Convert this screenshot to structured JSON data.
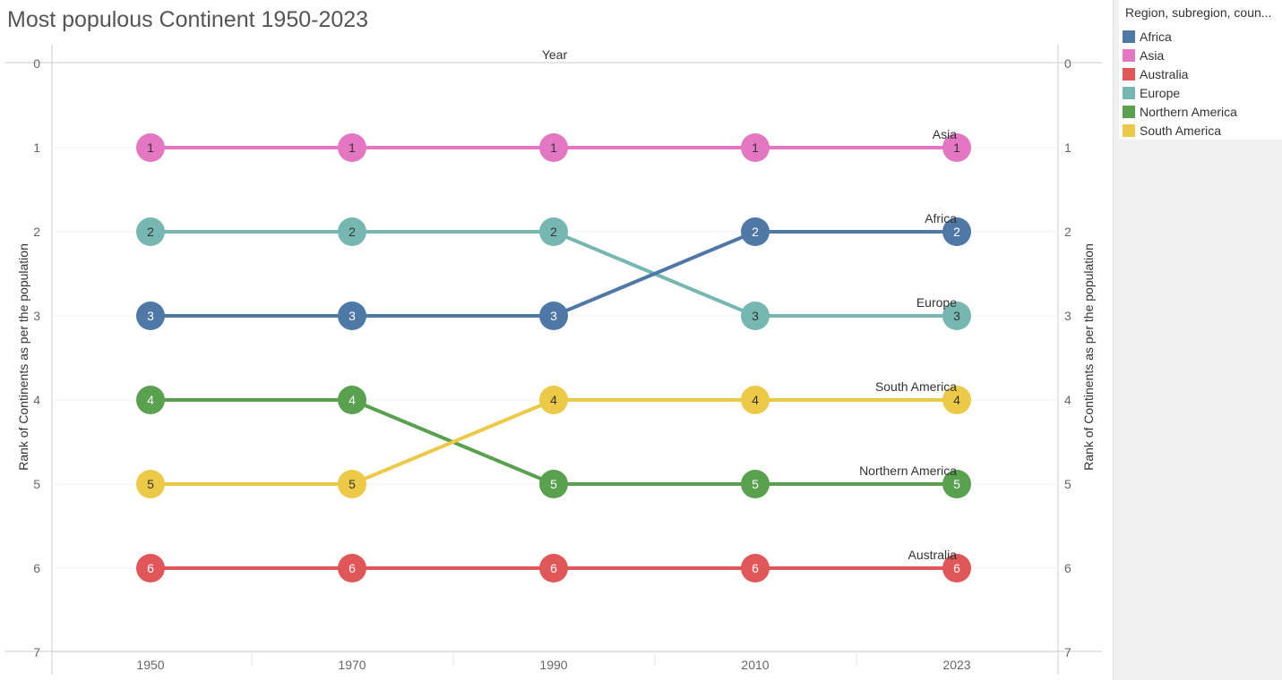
{
  "title": "Most populous Continent 1950-2023",
  "legend": {
    "title": "Region, subregion, coun...",
    "items": [
      {
        "label": "Africa",
        "color": "#4e79a7"
      },
      {
        "label": "Asia",
        "color": "#e377c2"
      },
      {
        "label": "Australia",
        "color": "#e15759"
      },
      {
        "label": "Europe",
        "color": "#76b7b2"
      },
      {
        "label": "Northern America",
        "color": "#59a14f"
      },
      {
        "label": "South America",
        "color": "#edc948"
      }
    ]
  },
  "chart_data": {
    "type": "line",
    "title": "Most populous Continent 1950-2023",
    "xlabel": "Year",
    "ylabel": "Rank of Continents as per the population",
    "ylabel_right": "Rank of Continents as per the population",
    "categories": [
      "1950",
      "1970",
      "1990",
      "2010",
      "2023"
    ],
    "y_ticks": [
      "0",
      "1",
      "2",
      "3",
      "4",
      "5",
      "6",
      "7"
    ],
    "ylim": [
      0,
      7
    ],
    "y_reversed": true,
    "series": [
      {
        "name": "Asia",
        "color": "#e377c2",
        "values": [
          1,
          1,
          1,
          1,
          1
        ]
      },
      {
        "name": "Europe",
        "color": "#76b7b2",
        "values": [
          2,
          2,
          2,
          3,
          3
        ]
      },
      {
        "name": "Africa",
        "color": "#4e79a7",
        "values": [
          3,
          3,
          3,
          2,
          2
        ]
      },
      {
        "name": "Northern America",
        "color": "#59a14f",
        "values": [
          4,
          4,
          5,
          5,
          5
        ]
      },
      {
        "name": "South America",
        "color": "#edc948",
        "values": [
          5,
          5,
          4,
          4,
          4
        ]
      },
      {
        "name": "Australia",
        "color": "#e15759",
        "values": [
          6,
          6,
          6,
          6,
          6
        ]
      }
    ]
  }
}
